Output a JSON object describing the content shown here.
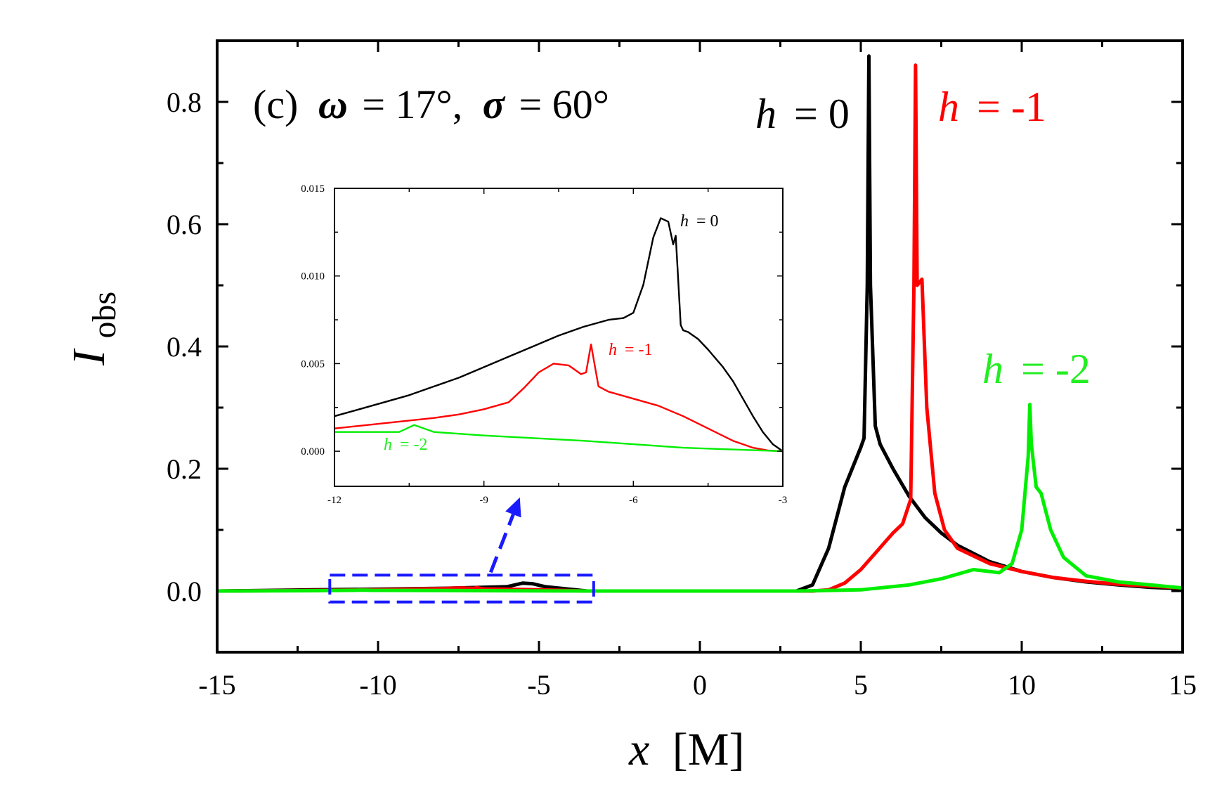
{
  "chart_data": [
    {
      "type": "line",
      "title": "(c) ω = 17°, σ = 60°",
      "title_parts": {
        "panel": "(c)",
        "omega_symbol": "ω",
        "omega_value": "= 17°,",
        "sigma_symbol": "σ",
        "sigma_value": "= 60°"
      },
      "xlabel": {
        "symbol": "x",
        "unit": "[M]"
      },
      "ylabel": {
        "symbol": "I",
        "subscript": "obs"
      },
      "xlim": [
        -15,
        15
      ],
      "ylim": [
        -0.1,
        0.9
      ],
      "xticks": [
        -15,
        -10,
        -5,
        0,
        5,
        10,
        15
      ],
      "xtick_labels": [
        "-15",
        "-10",
        "-5",
        "0",
        "5",
        "10",
        "15"
      ],
      "yticks": [
        0.0,
        0.2,
        0.4,
        0.6,
        0.8
      ],
      "ytick_labels": [
        "0.0",
        "0.2",
        "0.4",
        "0.6",
        "0.8"
      ],
      "grid": false,
      "series": [
        {
          "name": "h = 0",
          "label_symbol": "h",
          "label_value": "= 0",
          "color": "#000000",
          "x": [
            -15,
            -12,
            -10,
            -8,
            -6,
            -5.5,
            -5.2,
            -4.8,
            -3.5,
            3.0,
            3.5,
            4.0,
            4.5,
            5.0,
            5.1,
            5.2,
            5.25,
            5.3,
            5.45,
            5.6,
            6.0,
            6.5,
            7.0,
            7.5,
            8.0,
            9.0,
            10.0,
            11.0,
            12.0,
            13.0,
            14.0,
            15.0
          ],
          "y": [
            0.0,
            0.002,
            0.003,
            0.0045,
            0.007,
            0.013,
            0.012,
            0.007,
            0.0,
            0.0,
            0.01,
            0.07,
            0.17,
            0.235,
            0.25,
            0.5,
            0.875,
            0.5,
            0.27,
            0.24,
            0.2,
            0.155,
            0.12,
            0.095,
            0.075,
            0.048,
            0.032,
            0.022,
            0.015,
            0.01,
            0.006,
            0.004
          ]
        },
        {
          "name": "h = -1",
          "label_symbol": "h",
          "label_value": "= -1",
          "color": "#ff0000",
          "x": [
            -15,
            -12,
            -10,
            -8,
            -7.5,
            -7.0,
            -6.95,
            -6.85,
            -6.7,
            -6.0,
            -4.5,
            -3.5,
            3.5,
            4.0,
            4.5,
            5.0,
            5.5,
            6.0,
            6.3,
            6.55,
            6.65,
            6.7,
            6.75,
            6.9,
            7.05,
            7.3,
            7.6,
            8.0,
            9.0,
            10.0,
            11.0,
            12.0,
            13.0,
            14.0,
            15.0
          ],
          "y": [
            0.0,
            0.001,
            0.002,
            0.004,
            0.005,
            0.0045,
            0.006,
            0.0045,
            0.0035,
            0.003,
            0.0015,
            0.0,
            0.0,
            0.002,
            0.013,
            0.035,
            0.065,
            0.095,
            0.11,
            0.15,
            0.5,
            0.86,
            0.5,
            0.51,
            0.3,
            0.16,
            0.1,
            0.07,
            0.045,
            0.032,
            0.022,
            0.016,
            0.011,
            0.008,
            0.005
          ]
        },
        {
          "name": "h = -2",
          "label_symbol": "h",
          "label_value": "= -2",
          "color": "#00ee00",
          "x": [
            -15,
            -12,
            -10.6,
            -10.4,
            -10.2,
            -9.0,
            -6.0,
            -3.0,
            3.0,
            5.0,
            6.5,
            7.5,
            8.5,
            9.3,
            9.7,
            10.0,
            10.2,
            10.25,
            10.3,
            10.45,
            10.6,
            10.9,
            11.3,
            12.0,
            13.0,
            14.0,
            15.0
          ],
          "y": [
            0.0,
            0.0006,
            0.0014,
            0.0015,
            0.0012,
            0.001,
            0.0005,
            0.0,
            0.0,
            0.002,
            0.01,
            0.02,
            0.035,
            0.03,
            0.045,
            0.1,
            0.22,
            0.305,
            0.24,
            0.17,
            0.16,
            0.1,
            0.055,
            0.025,
            0.015,
            0.01,
            0.005
          ]
        }
      ],
      "highlight_box": {
        "x_range": [
          -11.5,
          -3.3
        ],
        "y_range": [
          -0.018,
          0.026
        ],
        "color": "#1a1aff",
        "style": "dashed"
      },
      "arrow_to_inset": {
        "color": "#1a1aff",
        "style": "dashed"
      }
    },
    {
      "type": "line",
      "role": "inset",
      "xlim": [
        -12,
        -3
      ],
      "ylim": [
        -0.002,
        0.015
      ],
      "xticks": [
        -12,
        -9,
        -6,
        -3
      ],
      "xtick_labels": [
        "-12",
        "-9",
        "-6",
        "-3"
      ],
      "yticks": [
        0.0,
        0.005,
        0.01,
        0.015
      ],
      "ytick_labels": [
        "0.000",
        "0.005",
        "0.010",
        "0.015"
      ],
      "grid": false,
      "series": [
        {
          "name": "h = 0",
          "label_symbol": "h",
          "label_value": "= 0",
          "color": "#000000",
          "x": [
            -12,
            -11.5,
            -11,
            -10.5,
            -10,
            -9.5,
            -9,
            -8.5,
            -8,
            -7.5,
            -7,
            -6.5,
            -6.2,
            -6.0,
            -5.8,
            -5.6,
            -5.45,
            -5.3,
            -5.2,
            -5.15,
            -5.1,
            -5.05,
            -5.0,
            -4.9,
            -4.7,
            -4.5,
            -4.2,
            -4.0,
            -3.8,
            -3.6,
            -3.4,
            -3.2,
            -3.0
          ],
          "y": [
            0.002,
            0.0024,
            0.0028,
            0.0032,
            0.0037,
            0.0042,
            0.0048,
            0.0054,
            0.006,
            0.0066,
            0.0071,
            0.0075,
            0.0076,
            0.0079,
            0.0095,
            0.0122,
            0.0133,
            0.0131,
            0.0118,
            0.0123,
            0.0098,
            0.0072,
            0.0069,
            0.0068,
            0.0064,
            0.0058,
            0.0048,
            0.004,
            0.003,
            0.002,
            0.0011,
            0.0004,
            0.0
          ]
        },
        {
          "name": "h = -1",
          "label_symbol": "h",
          "label_value": "= -1",
          "color": "#ff0000",
          "x": [
            -12,
            -11,
            -10,
            -9.5,
            -9,
            -8.5,
            -8.2,
            -7.9,
            -7.6,
            -7.3,
            -7.05,
            -6.95,
            -6.85,
            -6.8,
            -6.7,
            -6.5,
            -6.0,
            -5.5,
            -5.0,
            -4.5,
            -4.0,
            -3.6,
            -3.3,
            -3.0
          ],
          "y": [
            0.0013,
            0.0016,
            0.0019,
            0.0021,
            0.0024,
            0.0028,
            0.0036,
            0.0045,
            0.005,
            0.0049,
            0.0044,
            0.0045,
            0.0061,
            0.0053,
            0.0037,
            0.0034,
            0.003,
            0.0026,
            0.002,
            0.0013,
            0.0006,
            0.0002,
            5e-05,
            0.0
          ]
        },
        {
          "name": "h = -2",
          "label_symbol": "h",
          "label_value": "= -2",
          "color": "#00ee00",
          "x": [
            -12,
            -11,
            -10.7,
            -10.55,
            -10.4,
            -10.2,
            -10.0,
            -9.5,
            -9.0,
            -8.0,
            -7.0,
            -6.0,
            -5.0,
            -4.0,
            -3.0
          ],
          "y": [
            0.0011,
            0.0011,
            0.0011,
            0.0013,
            0.0015,
            0.0013,
            0.0011,
            0.001,
            0.0009,
            0.00075,
            0.0006,
            0.0004,
            0.0002,
            0.0001,
            0.0
          ]
        }
      ]
    }
  ]
}
